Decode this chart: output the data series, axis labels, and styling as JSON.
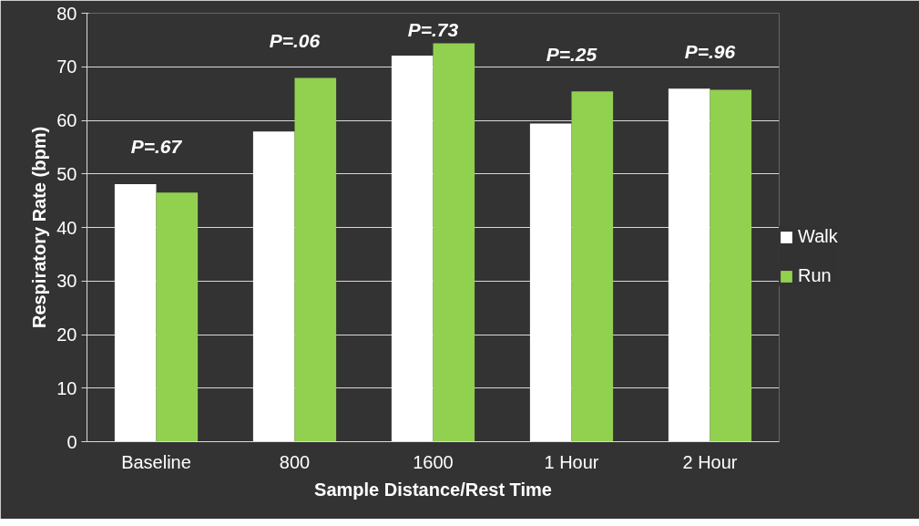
{
  "chart_data": {
    "type": "bar",
    "xlabel": "Sample Distance/Rest Time",
    "ylabel": "Respiratory Rate (bpm)",
    "categories": [
      "Baseline",
      "800",
      "1600",
      "1 Hour",
      "2 Hour"
    ],
    "series": [
      {
        "name": "Walk",
        "color": "#ffffff",
        "values": [
          48.1,
          57.9,
          72.1,
          59.4,
          65.9
        ]
      },
      {
        "name": "Run",
        "color": "#92d050",
        "values": [
          46.5,
          67.9,
          74.4,
          65.4,
          65.7
        ]
      }
    ],
    "ylim": [
      0,
      80
    ],
    "yticks": [
      0,
      10,
      20,
      30,
      40,
      50,
      60,
      70,
      80
    ],
    "grid": "y",
    "legend": "right",
    "annotations": [
      "P=.67",
      "P=.06",
      "P=.73",
      "P=.25",
      "P=.96"
    ]
  }
}
